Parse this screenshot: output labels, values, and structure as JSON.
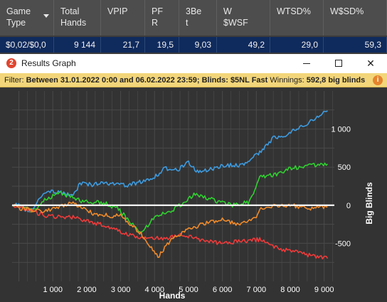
{
  "stats_table": {
    "columns": [
      {
        "key": "game_type",
        "label": "Game\nType",
        "sortable": true
      },
      {
        "key": "total_hands",
        "label": "Total\nHands"
      },
      {
        "key": "vpip",
        "label": "VPIP"
      },
      {
        "key": "pfr",
        "label": "PF\nR"
      },
      {
        "key": "3bet",
        "label": "3Be\nt"
      },
      {
        "key": "wwsf",
        "label": "W\n$WSF"
      },
      {
        "key": "wtsd",
        "label": "WTSD%"
      },
      {
        "key": "wsd",
        "label": "W$SD%"
      }
    ],
    "row": [
      "$0,02/$0,0",
      "9 144",
      "21,7",
      "19,5",
      "9,03",
      "49,2",
      "29,0",
      "59,3"
    ]
  },
  "window": {
    "title": "Results Graph",
    "icon_text": "2",
    "buttons": {
      "minimize": "minimize-icon",
      "maximize": "maximize-icon",
      "close": "✕"
    }
  },
  "filter_bar": {
    "label": "Filter:",
    "text": "Between 31.01.2022 0:00 and 06.02.2022 23:59; Blinds: $5NL Fast",
    "winnings_label": "Winnings:",
    "winnings_value": "592,8 big blinds",
    "icon": "info-icon"
  },
  "colors": {
    "net_won": "#3d9be0",
    "showdown": "#30d030",
    "non_showdown": "#ef3a3a",
    "ev": "#f08a2a",
    "zero_line": "#ffffff",
    "grid": "#4a4a4a",
    "plot_bg": "#333333"
  },
  "chart_data": {
    "type": "line",
    "xlabel": "Hands",
    "ylabel": "Big Blinds",
    "xlim": [
      -200,
      9300
    ],
    "ylim": [
      -1000,
      1500
    ],
    "x_ticks": [
      1000,
      2000,
      3000,
      4000,
      5000,
      6000,
      7000,
      8000,
      9000
    ],
    "x_tick_labels": [
      "1 000",
      "2 000",
      "3 000",
      "4 000",
      "5 000",
      "6 000",
      "7 000",
      "8 000",
      "9 000"
    ],
    "y_ticks": [
      1000,
      500,
      0,
      -500
    ],
    "y_tick_labels": [
      "1 000",
      "500",
      "0",
      "-500"
    ],
    "grid": true,
    "legend": "none",
    "series": [
      {
        "values": [
          [
            -200,
            0
          ],
          [
            0,
            0
          ],
          [
            300,
            -90
          ],
          [
            800,
            180
          ],
          [
            1200,
            170
          ],
          [
            1600,
            120
          ],
          [
            1800,
            280
          ],
          [
            2200,
            270
          ],
          [
            2500,
            300
          ],
          [
            3200,
            260
          ],
          [
            3600,
            310
          ],
          [
            4000,
            370
          ],
          [
            4300,
            480
          ],
          [
            4700,
            470
          ],
          [
            5000,
            560
          ],
          [
            5300,
            430
          ],
          [
            6000,
            520
          ],
          [
            6600,
            530
          ],
          [
            7100,
            700
          ],
          [
            7500,
            880
          ],
          [
            7900,
            930
          ],
          [
            8200,
            1000
          ],
          [
            8600,
            1100
          ],
          [
            9100,
            1240
          ]
        ]
      },
      {
        "values": [
          [
            -200,
            0
          ],
          [
            0,
            0
          ],
          [
            400,
            -80
          ],
          [
            800,
            80
          ],
          [
            1200,
            160
          ],
          [
            1600,
            100
          ],
          [
            1800,
            60
          ],
          [
            2500,
            30
          ],
          [
            2900,
            -40
          ],
          [
            3200,
            -180
          ],
          [
            3600,
            -380
          ],
          [
            4000,
            -150
          ],
          [
            4400,
            -90
          ],
          [
            4800,
            10
          ],
          [
            5200,
            150
          ],
          [
            5800,
            60
          ],
          [
            6300,
            0
          ],
          [
            6800,
            40
          ],
          [
            7100,
            380
          ],
          [
            7600,
            400
          ],
          [
            8000,
            480
          ],
          [
            8500,
            520
          ],
          [
            9100,
            540
          ]
        ]
      },
      {
        "values": [
          [
            -200,
            0
          ],
          [
            0,
            -20
          ],
          [
            800,
            -140
          ],
          [
            1600,
            -160
          ],
          [
            2400,
            -250
          ],
          [
            3000,
            -350
          ],
          [
            3600,
            -440
          ],
          [
            4400,
            -430
          ],
          [
            4800,
            -380
          ],
          [
            5300,
            -450
          ],
          [
            6000,
            -500
          ],
          [
            6600,
            -470
          ],
          [
            7100,
            -450
          ],
          [
            7600,
            -560
          ],
          [
            8200,
            -620
          ],
          [
            8800,
            -680
          ],
          [
            9100,
            -700
          ]
        ]
      },
      {
        "values": [
          [
            -200,
            0
          ],
          [
            0,
            -40
          ],
          [
            800,
            -80
          ],
          [
            1600,
            40
          ],
          [
            1800,
            -30
          ],
          [
            2300,
            -130
          ],
          [
            3000,
            -140
          ],
          [
            3600,
            -370
          ],
          [
            4100,
            -680
          ],
          [
            4500,
            -450
          ],
          [
            5000,
            -320
          ],
          [
            5500,
            -230
          ],
          [
            6000,
            -180
          ],
          [
            6400,
            -250
          ],
          [
            7000,
            -170
          ],
          [
            7100,
            -30
          ],
          [
            7600,
            -10
          ],
          [
            8000,
            0
          ],
          [
            8600,
            -40
          ],
          [
            9100,
            -20
          ]
        ]
      }
    ],
    "series_colors": [
      "#3d9be0",
      "#30d030",
      "#ef3a3a",
      "#f08a2a"
    ]
  }
}
